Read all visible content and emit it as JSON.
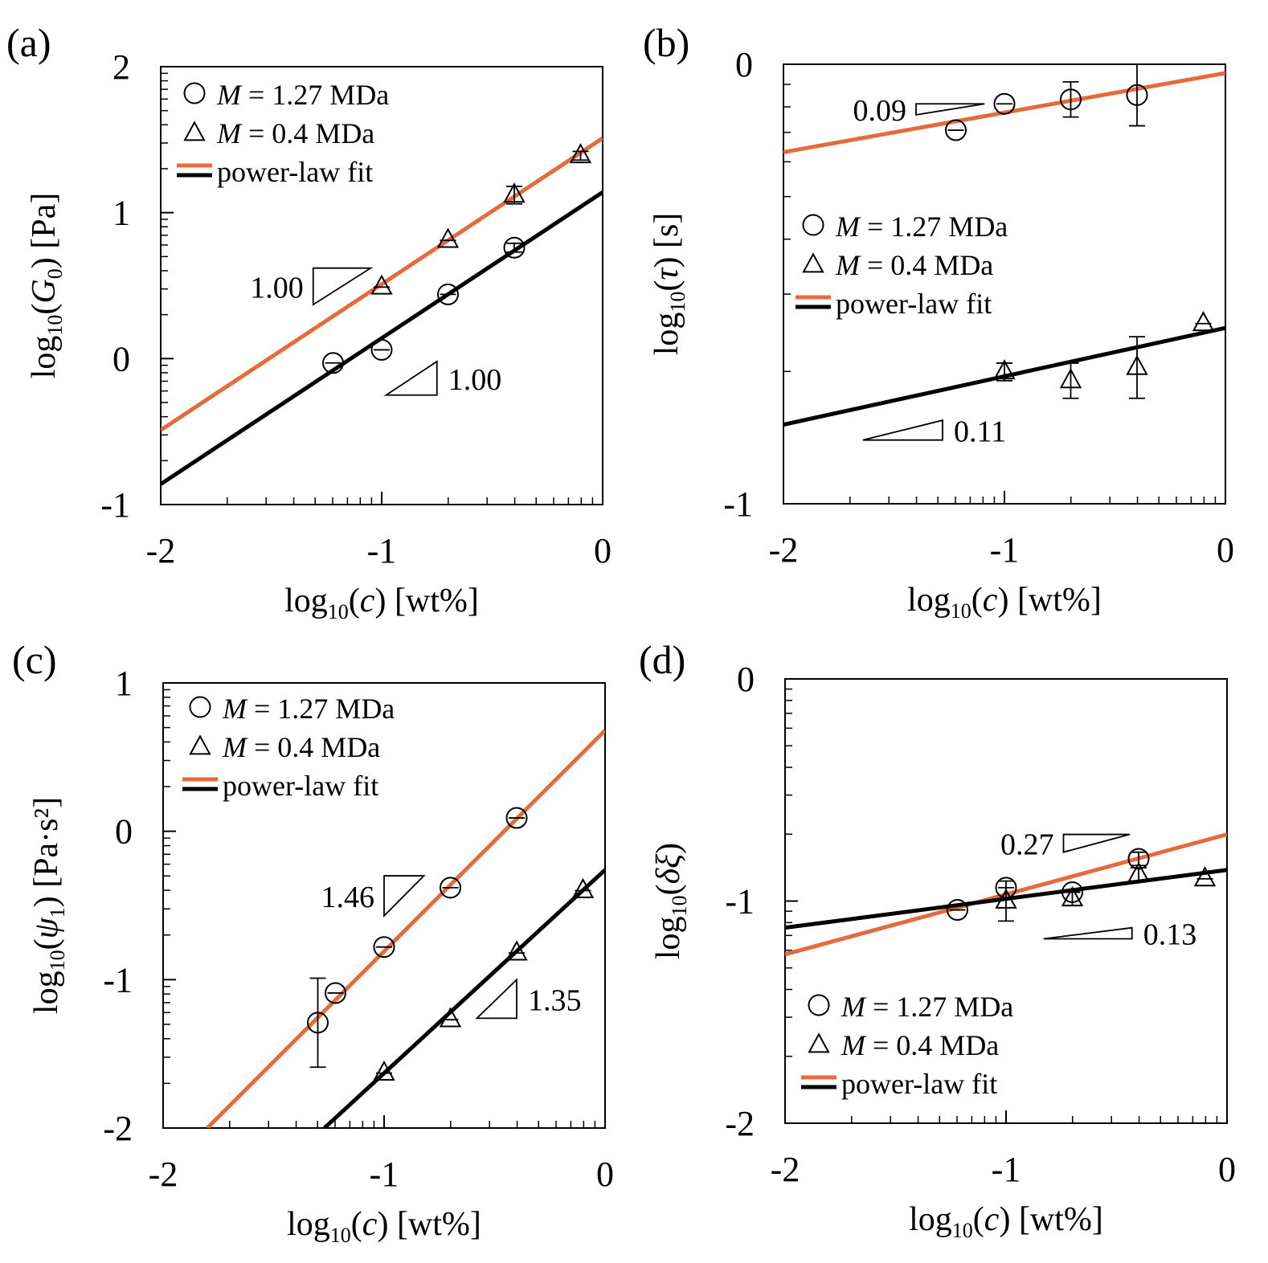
{
  "colors": {
    "fit_1_27": "#e56b3c",
    "fit_0_4": "#000000"
  },
  "chart_data": [
    {
      "panel": "(a)",
      "type": "scatter",
      "xlabel": {
        "pre": "log",
        "sub": "10",
        "paren_open": "(",
        "var": "c",
        "var_sub": "",
        "post": ") [wt%]"
      },
      "ylabel": {
        "pre": "log",
        "sub": "10",
        "paren_open": "(",
        "var": "G",
        "var_sub": "0",
        "post": ") [Pa]"
      },
      "xlim": [
        -2,
        0
      ],
      "ylim": [
        -1,
        2
      ],
      "xticks": [
        -2,
        -1,
        0
      ],
      "xtick_labels": [
        "-2",
        "-1",
        "0"
      ],
      "yticks": [
        -1,
        0,
        1,
        2
      ],
      "ytick_labels": [
        "-1",
        "0",
        "1",
        "2"
      ],
      "legend": {
        "position": "top-left",
        "entries": [
          {
            "symbol": "circle",
            "var": "M",
            "text": " = 1.27 MDa"
          },
          {
            "symbol": "triangle",
            "var": "M",
            "text": " = 0.4 MDa"
          },
          {
            "symbol": "line",
            "var": "",
            "text": "power-law fit"
          }
        ]
      },
      "series": [
        {
          "name": "M = 1.27 MDa",
          "marker": "circle",
          "fit_color": "#000000",
          "x": [
            -1.22,
            -1.0,
            -0.7,
            -0.4
          ],
          "y": [
            -0.03,
            0.06,
            0.44,
            0.76
          ],
          "err": [
            0.0,
            0.0,
            0.0,
            0.03
          ],
          "fit": {
            "x": [
              -2,
              0
            ],
            "y": [
              -0.86,
              1.14
            ]
          }
        },
        {
          "name": "M = 0.4 MDa",
          "marker": "triangle",
          "fit_color": "#e56b3c",
          "x": [
            -1.0,
            -0.7,
            -0.4,
            -0.1
          ],
          "y": [
            0.49,
            0.81,
            1.12,
            1.39
          ],
          "err": [
            0.0,
            0.0,
            0.06,
            0.03
          ],
          "fit": {
            "x": [
              -2,
              0
            ],
            "y": [
              -0.49,
              1.51
            ]
          }
        }
      ],
      "annotations": [
        {
          "text": "1.00",
          "triangle": "down",
          "x1": -1.31,
          "x2": -1.05,
          "y_top": 0.62,
          "y_bottom": 0.37,
          "label_side": "left"
        },
        {
          "text": "1.00",
          "triangle": "up",
          "x1": -0.98,
          "x2": -0.75,
          "y_top": -0.02,
          "y_bottom": -0.25,
          "label_side": "right"
        }
      ]
    },
    {
      "panel": "(b)",
      "type": "scatter",
      "xlabel": {
        "pre": "log",
        "sub": "10",
        "paren_open": "(",
        "var": "c",
        "var_sub": "",
        "post": ") [wt%]"
      },
      "ylabel": {
        "pre": "log",
        "sub": "10",
        "paren_open": "(",
        "var": "τ",
        "var_sub": "",
        "post": ") [s]"
      },
      "xlim": [
        -2,
        0
      ],
      "ylim": [
        -1,
        0
      ],
      "xticks": [
        -2,
        -1,
        0
      ],
      "xtick_labels": [
        "-2",
        "-1",
        "0"
      ],
      "yticks": [
        -1,
        0
      ],
      "ytick_labels": [
        "-1",
        "0"
      ],
      "legend": {
        "position": "center-left",
        "entries": [
          {
            "symbol": "circle",
            "var": "M",
            "text": " = 1.27 MDa"
          },
          {
            "symbol": "triangle",
            "var": "M",
            "text": " = 0.4 MDa"
          },
          {
            "symbol": "line",
            "var": "",
            "text": "power-law fit"
          }
        ]
      },
      "series": [
        {
          "name": "M = 1.27 MDa",
          "marker": "circle",
          "fit_color": "#e56b3c",
          "x": [
            -1.22,
            -1.0,
            -0.7,
            -0.4
          ],
          "y": [
            -0.15,
            -0.09,
            -0.08,
            -0.07
          ],
          "err": [
            0.0,
            0.0,
            0.04,
            0.07
          ],
          "fit": {
            "x": [
              -2,
              0
            ],
            "y": [
              -0.2,
              -0.02
            ]
          }
        },
        {
          "name": "M = 0.4 MDa",
          "marker": "triangle",
          "fit_color": "#000000",
          "x": [
            -1.0,
            -0.7,
            -0.4,
            -0.1
          ],
          "y": [
            -0.7,
            -0.72,
            -0.69,
            -0.59
          ],
          "err": [
            0.02,
            0.04,
            0.07,
            0.0
          ],
          "fit": {
            "x": [
              -2,
              0
            ],
            "y": [
              -0.82,
              -0.6
            ]
          }
        }
      ],
      "annotations": [
        {
          "text": "0.09",
          "triangle": "down",
          "x1": -1.4,
          "x2": -1.09,
          "y_top": -0.09,
          "y_bottom": -0.115,
          "label_side": "left"
        },
        {
          "text": "0.11",
          "triangle": "up",
          "x1": -1.64,
          "x2": -1.28,
          "y_top": -0.81,
          "y_bottom": -0.855,
          "label_side": "right"
        }
      ]
    },
    {
      "panel": "(c)",
      "type": "scatter",
      "xlabel": {
        "pre": "log",
        "sub": "10",
        "paren_open": "(",
        "var": "c",
        "var_sub": "",
        "post": ") [wt%]"
      },
      "ylabel": {
        "pre": "log",
        "sub": "10",
        "paren_open": "(",
        "var": "ψ",
        "var_sub": "1",
        "post": ") [Pa·s²]"
      },
      "xlim": [
        -2,
        0
      ],
      "ylim": [
        -2,
        1
      ],
      "xticks": [
        -2,
        -1,
        0
      ],
      "xtick_labels": [
        "-2",
        "-1",
        "0"
      ],
      "yticks": [
        -2,
        -1,
        0,
        1
      ],
      "ytick_labels": [
        "-2",
        "-1",
        "0",
        "1"
      ],
      "legend": {
        "position": "top-left",
        "entries": [
          {
            "symbol": "circle",
            "var": "M",
            "text": " = 1.27 MDa"
          },
          {
            "symbol": "triangle",
            "var": "M",
            "text": " = 0.4 MDa"
          },
          {
            "symbol": "line",
            "var": "",
            "text": "power-law fit"
          }
        ]
      },
      "series": [
        {
          "name": "M = 1.27 MDa",
          "marker": "circle",
          "fit_color": "#e56b3c",
          "x": [
            -1.3,
            -1.22,
            -1.0,
            -0.7,
            -0.4
          ],
          "y": [
            -1.29,
            -1.09,
            -0.78,
            -0.38,
            0.09
          ],
          "err": [
            0.3,
            0.0,
            0.0,
            0.0,
            0.0
          ],
          "fit": {
            "x": [
              -1.8,
              0
            ],
            "y": [
              -2,
              0.68
            ]
          }
        },
        {
          "name": "M = 0.4 MDa",
          "marker": "triangle",
          "fit_color": "#000000",
          "x": [
            -1.0,
            -0.7,
            -0.4,
            -0.1
          ],
          "y": [
            -1.63,
            -1.27,
            -0.82,
            -0.4
          ],
          "err": [
            0.0,
            0.0,
            0.0,
            0.0
          ],
          "fit": {
            "x": [
              -1.27,
              0
            ],
            "y": [
              -2,
              -0.26
            ]
          }
        }
      ],
      "annotations": [
        {
          "text": "1.46",
          "triangle": "down",
          "x1": -1.0,
          "x2": -0.82,
          "y_top": -0.3,
          "y_bottom": -0.57,
          "label_side": "left"
        },
        {
          "text": "1.35",
          "triangle": "up",
          "x1": -0.58,
          "x2": -0.4,
          "y_top": -1.0,
          "y_bottom": -1.26,
          "label_side": "right"
        }
      ]
    },
    {
      "panel": "(d)",
      "type": "scatter",
      "xlabel": {
        "pre": "log",
        "sub": "10",
        "paren_open": "(",
        "var": "c",
        "var_sub": "",
        "post": ") [wt%]"
      },
      "ylabel": {
        "pre": "log",
        "sub": "10",
        "paren_open": "(",
        "var": "δξ",
        "var_sub": "",
        "post": ")"
      },
      "xlim": [
        -2,
        0
      ],
      "ylim": [
        -2,
        0
      ],
      "xticks": [
        -2,
        -1,
        0
      ],
      "xtick_labels": [
        "-2",
        "-1",
        "0"
      ],
      "yticks": [
        -2,
        -1,
        0
      ],
      "ytick_labels": [
        "-2",
        "-1",
        "0"
      ],
      "legend": {
        "position": "bottom-left",
        "entries": [
          {
            "symbol": "circle",
            "var": "M",
            "text": " = 1.27 MDa"
          },
          {
            "symbol": "triangle",
            "var": "M",
            "text": " = 0.4 MDa"
          },
          {
            "symbol": "line",
            "var": "",
            "text": "power-law fit"
          }
        ]
      },
      "series": [
        {
          "name": "M = 1.27 MDa",
          "marker": "circle",
          "fit_color": "#e56b3c",
          "x": [
            -1.22,
            -1.0,
            -0.7,
            -0.4
          ],
          "y": [
            -1.04,
            -0.94,
            -0.96,
            -0.81
          ],
          "err": [
            0.0,
            0.0,
            0.0,
            0.03
          ],
          "fit": {
            "x": [
              -2,
              0
            ],
            "y": [
              -1.24,
              -0.7
            ]
          }
        },
        {
          "name": "M = 0.4 MDa",
          "marker": "triangle",
          "fit_color": "#000000",
          "x": [
            -1.0,
            -0.7,
            -0.4,
            -0.1
          ],
          "y": [
            -1.0,
            -0.99,
            -0.88,
            -0.9
          ],
          "err": [
            0.09,
            0.03,
            0.03,
            0.0
          ],
          "fit": {
            "x": [
              -2,
              0
            ],
            "y": [
              -1.12,
              -0.86
            ]
          }
        }
      ],
      "annotations": [
        {
          "text": "0.27",
          "triangle": "down",
          "x1": -0.74,
          "x2": -0.44,
          "y_top": -0.7,
          "y_bottom": -0.78,
          "label_side": "left"
        },
        {
          "text": "0.13",
          "triangle": "up",
          "x1": -0.83,
          "x2": -0.43,
          "y_top": -1.12,
          "y_bottom": -1.17,
          "label_side": "right"
        }
      ]
    }
  ]
}
